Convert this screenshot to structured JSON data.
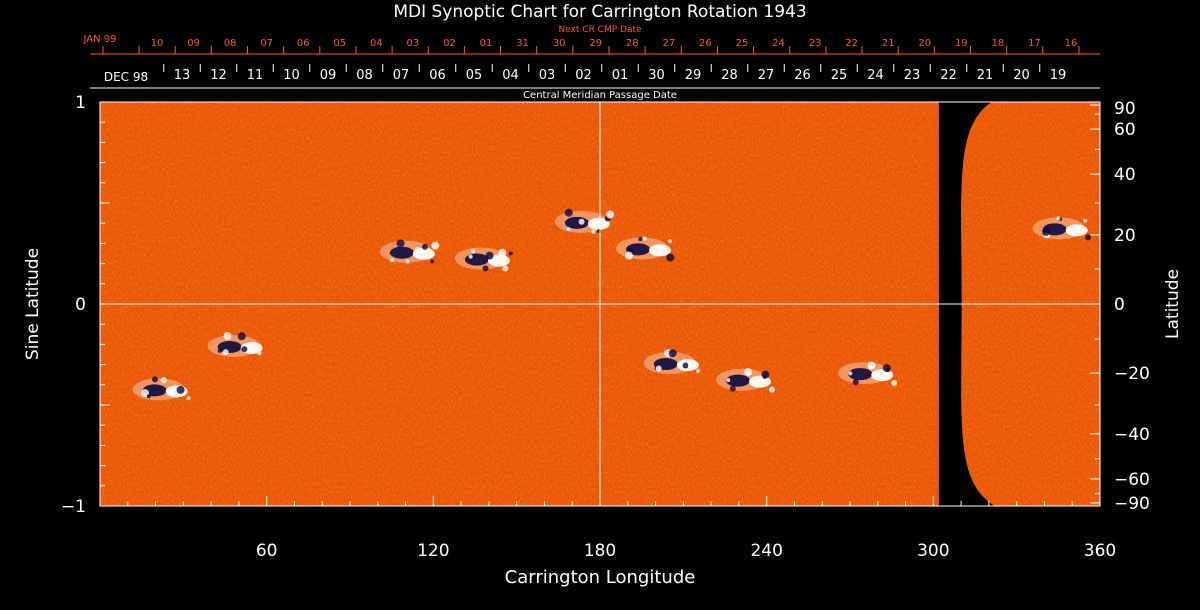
{
  "chart_data": {
    "type": "heatmap",
    "title": "MDI Synoptic Chart for Carrington Rotation 1943",
    "xlabel": "Carrington Longitude",
    "ylabel_left": "Sine Latitude",
    "ylabel_right": "Latitude",
    "top_axis_title_next": "Next CR CMP Date",
    "top_axis_title_cmp": "Central Meridian Passage Date",
    "xlim": [
      0,
      360
    ],
    "ylim_sine": [
      -1,
      1
    ],
    "x_ticks": [
      60,
      120,
      180,
      240,
      300,
      360
    ],
    "y_ticks_left": [
      {
        "value": 1,
        "label": "1"
      },
      {
        "value": 0,
        "label": "0"
      },
      {
        "value": -1,
        "label": "−1"
      }
    ],
    "y_ticks_right": [
      {
        "lat": 90,
        "label": "90"
      },
      {
        "lat": 60,
        "label": "60"
      },
      {
        "lat": 40,
        "label": "40"
      },
      {
        "lat": 20,
        "label": "20"
      },
      {
        "lat": 0,
        "label": "0"
      },
      {
        "lat": -20,
        "label": "−20"
      },
      {
        "lat": -40,
        "label": "−40"
      },
      {
        "lat": -60,
        "label": "−60"
      },
      {
        "lat": -90,
        "label": "−90"
      }
    ],
    "next_cr_dates": {
      "month_label": "JAN 99",
      "days": [
        "10",
        "09",
        "08",
        "07",
        "06",
        "05",
        "04",
        "03",
        "02",
        "01",
        "31",
        "30",
        "29",
        "28",
        "27",
        "26",
        "25",
        "24",
        "23",
        "22",
        "21",
        "20",
        "19",
        "18",
        "17",
        "16"
      ]
    },
    "cmp_dates": {
      "month_label": "DEC 98",
      "days": [
        "13",
        "12",
        "11",
        "10",
        "09",
        "08",
        "07",
        "06",
        "05",
        "04",
        "03",
        "02",
        "01",
        "30",
        "29",
        "28",
        "27",
        "26",
        "25",
        "24",
        "23",
        "22",
        "21",
        "20",
        "19"
      ]
    },
    "colorscale": {
      "background": "#000000",
      "field": "#ee5a10",
      "positive": "#ffffff",
      "negative": "#0a0a40"
    },
    "data_gap_longitude": [
      302,
      312
    ],
    "active_regions": [
      {
        "lon": 113,
        "lat": 15,
        "polarity": "mixed"
      },
      {
        "lon": 140,
        "lat": 13,
        "polarity": "mixed"
      },
      {
        "lon": 176,
        "lat": 24,
        "polarity": "mixed"
      },
      {
        "lon": 198,
        "lat": 16,
        "polarity": "mixed"
      },
      {
        "lon": 24,
        "lat": -25,
        "polarity": "mixed"
      },
      {
        "lon": 51,
        "lat": -12,
        "polarity": "mixed"
      },
      {
        "lon": 208,
        "lat": -17,
        "polarity": "mixed"
      },
      {
        "lon": 234,
        "lat": -22,
        "polarity": "mixed"
      },
      {
        "lon": 278,
        "lat": -20,
        "polarity": "mixed"
      },
      {
        "lon": 348,
        "lat": 22,
        "polarity": "mixed"
      }
    ]
  }
}
